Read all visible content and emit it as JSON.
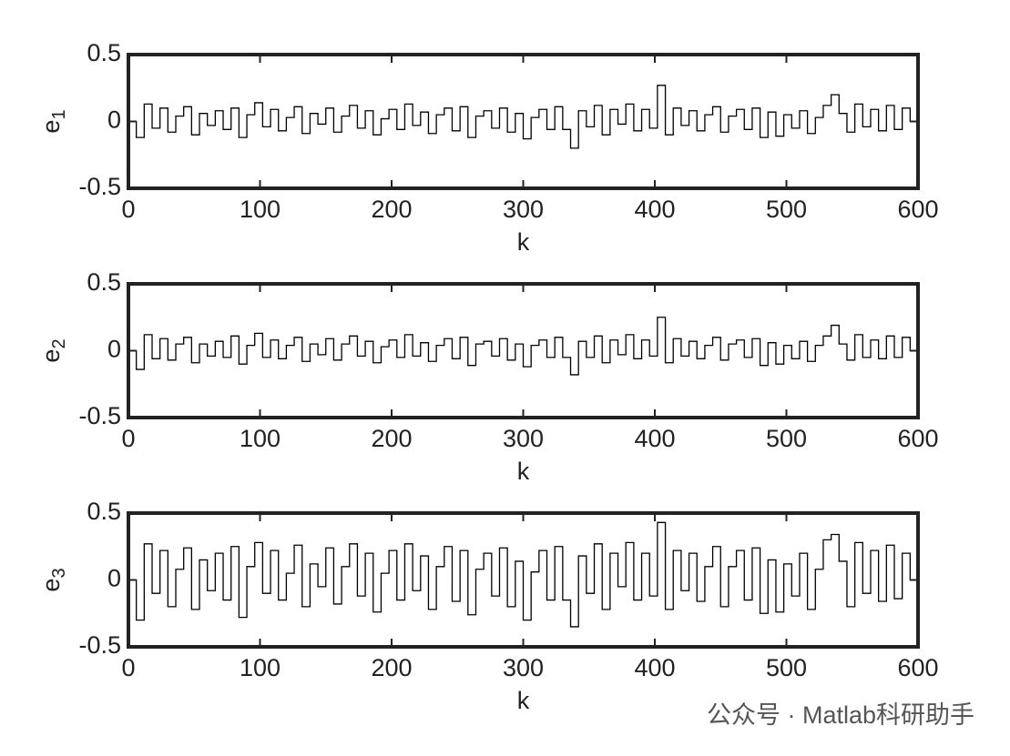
{
  "chart_data": [
    {
      "type": "line",
      "step": true,
      "color": "#000000",
      "ylabel": {
        "base": "e",
        "subscript": "1"
      },
      "xlabel": "k",
      "xlim": [
        0,
        600
      ],
      "ylim": [
        -0.5,
        0.5
      ],
      "xticks": [
        0,
        100,
        200,
        300,
        400,
        500,
        600
      ],
      "yticks": [
        -0.5,
        0,
        0.5
      ],
      "x": [
        0,
        6,
        12,
        18,
        24,
        30,
        36,
        42,
        48,
        54,
        60,
        66,
        72,
        78,
        84,
        90,
        96,
        102,
        108,
        114,
        120,
        126,
        132,
        138,
        144,
        150,
        156,
        162,
        168,
        174,
        180,
        186,
        192,
        198,
        204,
        210,
        216,
        222,
        228,
        234,
        240,
        246,
        252,
        258,
        264,
        270,
        276,
        282,
        288,
        294,
        300,
        306,
        312,
        318,
        324,
        330,
        336,
        342,
        348,
        354,
        360,
        366,
        372,
        378,
        384,
        390,
        396,
        402,
        408,
        414,
        420,
        426,
        432,
        438,
        444,
        450,
        456,
        462,
        468,
        474,
        480,
        486,
        492,
        498,
        504,
        510,
        516,
        522,
        528,
        534,
        540,
        546,
        552,
        558,
        564,
        570,
        576,
        582,
        588,
        594,
        600
      ],
      "series": [
        {
          "values": [
            0,
            -0.12,
            0.13,
            -0.05,
            0.1,
            -0.08,
            0.04,
            0.11,
            -0.1,
            0.06,
            -0.03,
            0.08,
            -0.06,
            0.1,
            -0.12,
            0.05,
            0.14,
            -0.04,
            0.09,
            -0.07,
            0.03,
            0.11,
            -0.09,
            0.06,
            -0.02,
            0.1,
            -0.08,
            0.04,
            0.12,
            -0.05,
            0.08,
            -0.1,
            0.02,
            0.09,
            -0.06,
            0.13,
            -0.03,
            0.07,
            -0.09,
            0.05,
            0.1,
            -0.07,
            0.11,
            -0.12,
            0.04,
            0.08,
            -0.05,
            0.1,
            -0.08,
            0.06,
            -0.13,
            0.03,
            0.09,
            -0.06,
            0.11,
            -0.06,
            -0.2,
            0.08,
            -0.04,
            0.12,
            -0.1,
            0.09,
            -0.02,
            0.13,
            -0.07,
            0.09,
            -0.05,
            0.27,
            -0.1,
            0.1,
            -0.03,
            0.08,
            -0.07,
            0.05,
            0.11,
            -0.08,
            0.04,
            0.09,
            -0.06,
            0.1,
            -0.12,
            0.07,
            -0.11,
            0.05,
            -0.05,
            0.08,
            -0.09,
            0.03,
            0.12,
            0.2,
            0.06,
            -0.08,
            0.13,
            -0.04,
            0.09,
            -0.07,
            0.12,
            -0.06,
            0.1,
            0,
            0
          ]
        }
      ]
    },
    {
      "type": "line",
      "step": true,
      "color": "#000000",
      "ylabel": {
        "base": "e",
        "subscript": "2"
      },
      "xlabel": "k",
      "xlim": [
        0,
        600
      ],
      "ylim": [
        -0.5,
        0.5
      ],
      "xticks": [
        0,
        100,
        200,
        300,
        400,
        500,
        600
      ],
      "yticks": [
        -0.5,
        0,
        0.5
      ],
      "x": [
        0,
        6,
        12,
        18,
        24,
        30,
        36,
        42,
        48,
        54,
        60,
        66,
        72,
        78,
        84,
        90,
        96,
        102,
        108,
        114,
        120,
        126,
        132,
        138,
        144,
        150,
        156,
        162,
        168,
        174,
        180,
        186,
        192,
        198,
        204,
        210,
        216,
        222,
        228,
        234,
        240,
        246,
        252,
        258,
        264,
        270,
        276,
        282,
        288,
        294,
        300,
        306,
        312,
        318,
        324,
        330,
        336,
        342,
        348,
        354,
        360,
        366,
        372,
        378,
        384,
        390,
        396,
        402,
        408,
        414,
        420,
        426,
        432,
        438,
        444,
        450,
        456,
        462,
        468,
        474,
        480,
        486,
        492,
        498,
        504,
        510,
        516,
        522,
        528,
        534,
        540,
        546,
        552,
        558,
        564,
        570,
        576,
        582,
        588,
        594,
        600
      ],
      "series": [
        {
          "values": [
            0,
            -0.14,
            0.12,
            -0.06,
            0.09,
            -0.07,
            0.05,
            0.1,
            -0.09,
            0.05,
            -0.04,
            0.07,
            -0.05,
            0.11,
            -0.1,
            0.04,
            0.13,
            -0.05,
            0.08,
            -0.06,
            0.04,
            0.1,
            -0.08,
            0.05,
            -0.03,
            0.09,
            -0.07,
            0.05,
            0.11,
            -0.04,
            0.07,
            -0.09,
            0.03,
            0.08,
            -0.05,
            0.12,
            -0.04,
            0.06,
            -0.08,
            0.04,
            0.09,
            -0.06,
            0.1,
            -0.11,
            0.05,
            0.07,
            -0.04,
            0.09,
            -0.07,
            0.05,
            -0.12,
            0.04,
            0.08,
            -0.05,
            0.1,
            -0.05,
            -0.18,
            0.07,
            -0.05,
            0.11,
            -0.09,
            0.08,
            -0.03,
            0.12,
            -0.06,
            0.08,
            -0.04,
            0.25,
            -0.09,
            0.09,
            -0.04,
            0.07,
            -0.06,
            0.04,
            0.1,
            -0.07,
            0.05,
            0.08,
            -0.05,
            0.09,
            -0.11,
            0.06,
            -0.1,
            0.04,
            -0.06,
            0.07,
            -0.08,
            0.04,
            0.11,
            0.19,
            0.05,
            -0.07,
            0.12,
            -0.05,
            0.08,
            -0.06,
            0.11,
            -0.05,
            0.1,
            0,
            0
          ]
        }
      ]
    },
    {
      "type": "line",
      "step": true,
      "color": "#000000",
      "ylabel": {
        "base": "e",
        "subscript": "3"
      },
      "xlabel": "k",
      "xlim": [
        0,
        600
      ],
      "ylim": [
        -0.5,
        0.5
      ],
      "xticks": [
        0,
        100,
        200,
        300,
        400,
        500,
        600
      ],
      "yticks": [
        -0.5,
        0,
        0.5
      ],
      "x": [
        0,
        6,
        12,
        18,
        24,
        30,
        36,
        42,
        48,
        54,
        60,
        66,
        72,
        78,
        84,
        90,
        96,
        102,
        108,
        114,
        120,
        126,
        132,
        138,
        144,
        150,
        156,
        162,
        168,
        174,
        180,
        186,
        192,
        198,
        204,
        210,
        216,
        222,
        228,
        234,
        240,
        246,
        252,
        258,
        264,
        270,
        276,
        282,
        288,
        294,
        300,
        306,
        312,
        318,
        324,
        330,
        336,
        342,
        348,
        354,
        360,
        366,
        372,
        378,
        384,
        390,
        396,
        402,
        408,
        414,
        420,
        426,
        432,
        438,
        444,
        450,
        456,
        462,
        468,
        474,
        480,
        486,
        492,
        498,
        504,
        510,
        516,
        522,
        528,
        534,
        540,
        546,
        552,
        558,
        564,
        570,
        576,
        582,
        588,
        594,
        600
      ],
      "series": [
        {
          "values": [
            0,
            -0.3,
            0.27,
            -0.1,
            0.22,
            -0.2,
            0.08,
            0.24,
            -0.22,
            0.15,
            -0.08,
            0.2,
            -0.15,
            0.25,
            -0.28,
            0.1,
            0.28,
            -0.1,
            0.22,
            -0.15,
            0.05,
            0.26,
            -0.2,
            0.12,
            -0.05,
            0.24,
            -0.18,
            0.1,
            0.27,
            -0.12,
            0.2,
            -0.24,
            0.05,
            0.22,
            -0.15,
            0.27,
            -0.08,
            0.18,
            -0.22,
            0.1,
            0.25,
            -0.16,
            0.22,
            -0.26,
            0.08,
            0.2,
            -0.12,
            0.24,
            -0.2,
            0.14,
            -0.3,
            0.06,
            0.22,
            -0.15,
            0.25,
            -0.15,
            -0.35,
            0.18,
            -0.1,
            0.27,
            -0.22,
            0.2,
            -0.05,
            0.28,
            -0.15,
            0.2,
            -0.12,
            0.43,
            -0.22,
            0.22,
            -0.08,
            0.2,
            -0.16,
            0.1,
            0.25,
            -0.2,
            0.1,
            0.22,
            -0.15,
            0.24,
            -0.25,
            0.15,
            -0.24,
            0.12,
            -0.12,
            0.2,
            -0.22,
            0.08,
            0.3,
            0.34,
            0.14,
            -0.2,
            0.28,
            -0.1,
            0.22,
            -0.16,
            0.26,
            -0.14,
            0.2,
            0,
            0
          ]
        }
      ]
    }
  ],
  "watermark": "公众号 · Matlab科研助手"
}
